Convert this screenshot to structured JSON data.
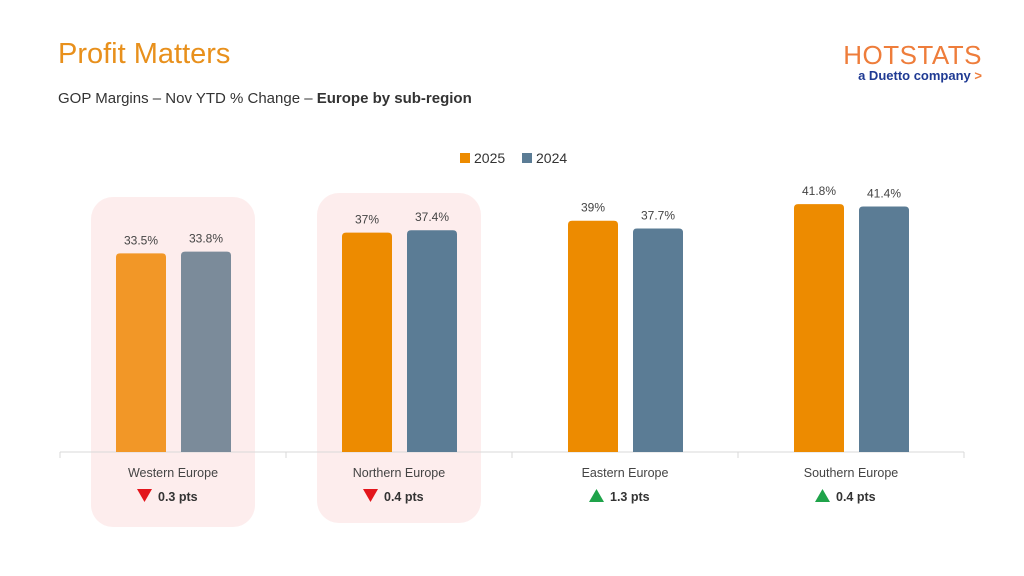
{
  "header": {
    "title": "Profit Matters",
    "subtitle_prefix": "GOP Margins – Nov YTD % Change – ",
    "subtitle_bold": "Europe by sub-region"
  },
  "logo": {
    "brand": "HOTSTATS",
    "tagline": "a Duetto company",
    "arrow": ">"
  },
  "colors": {
    "series_2025": "#ED8B00",
    "series_2024": "#5B7C95",
    "highlight": "#FDEDED",
    "down": "#E3161C",
    "up": "#1FA34A"
  },
  "chart_data": {
    "type": "bar",
    "categories": [
      "Western Europe",
      "Northern Europe",
      "Eastern Europe",
      "Southern Europe"
    ],
    "series": [
      {
        "name": "2025",
        "values": [
          33.5,
          37,
          39,
          41.8
        ],
        "labels": [
          "33.5%",
          "37%",
          "39%",
          "41.8%"
        ]
      },
      {
        "name": "2024",
        "values": [
          33.8,
          37.4,
          37.7,
          41.4
        ],
        "labels": [
          "33.8%",
          "37.4%",
          "37.7%",
          "41.4%"
        ]
      }
    ],
    "changes": [
      {
        "direction": "down",
        "label": "0.3 pts"
      },
      {
        "direction": "down",
        "label": "0.4 pts"
      },
      {
        "direction": "up",
        "label": "1.3 pts"
      },
      {
        "direction": "up",
        "label": "0.4 pts"
      }
    ],
    "highlighted": [
      "Western Europe",
      "Northern Europe"
    ],
    "ylim": [
      0,
      42
    ],
    "legend": "top-center",
    "grid": false
  }
}
